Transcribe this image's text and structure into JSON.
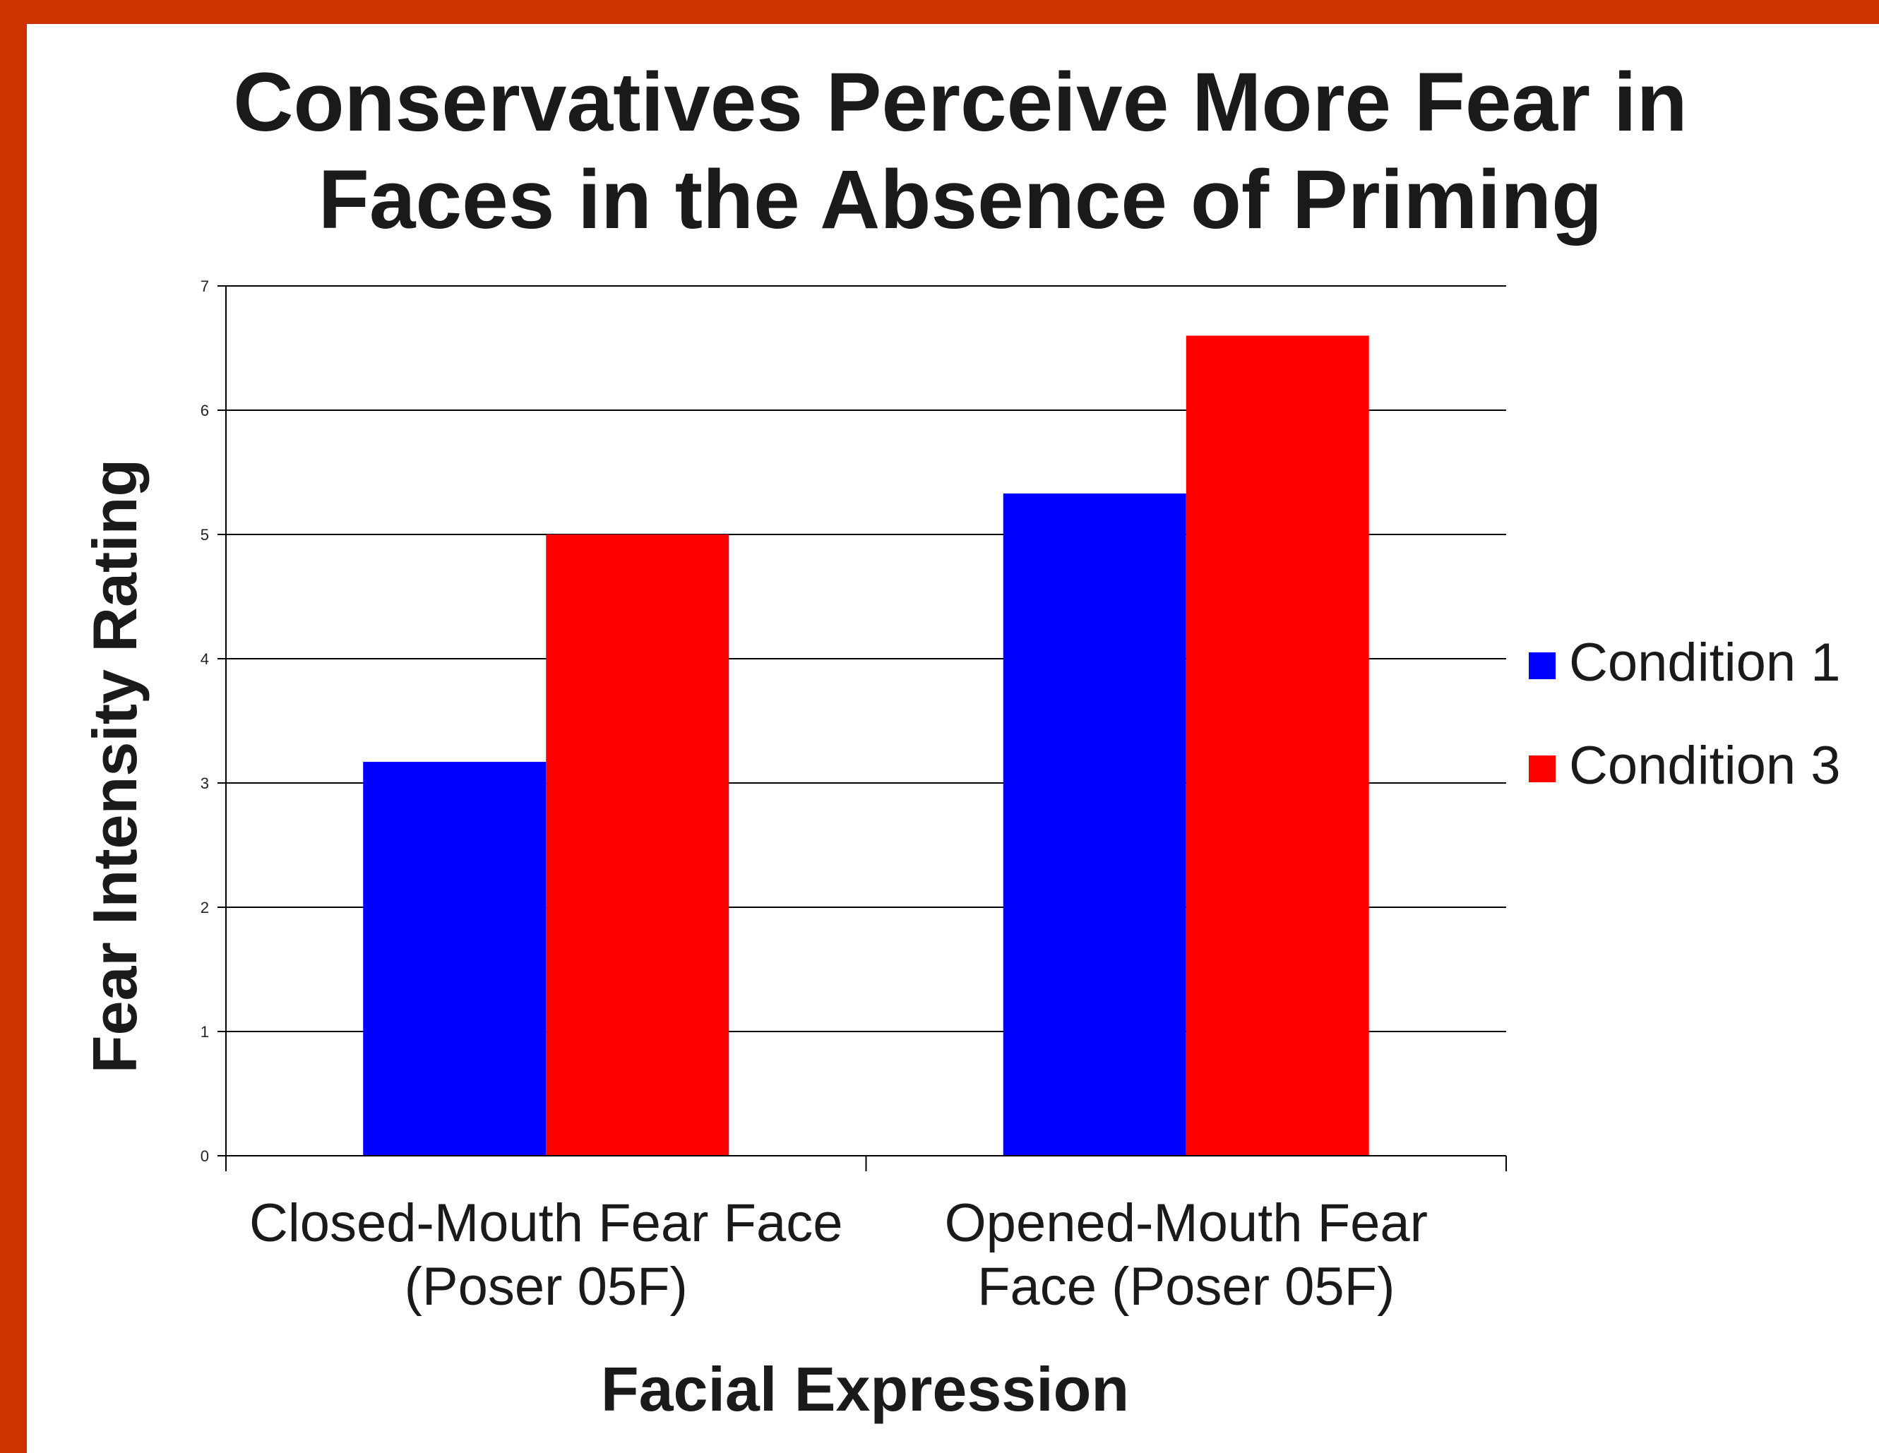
{
  "colors": {
    "frame": "#cc3300",
    "condition_1": "#0000ff",
    "condition_3": "#ff0000",
    "gridline": "#000000"
  },
  "chart_data": {
    "type": "bar",
    "title_lines": [
      "Conservatives Perceive More Fear in",
      "Faces in the Absence of Priming"
    ],
    "xlabel": "Facial Expression",
    "ylabel": "Fear Intensity Rating",
    "categories": [
      [
        "Closed-Mouth Fear Face",
        "(Poser 05F)"
      ],
      [
        "Opened-Mouth Fear",
        "Face (Poser 05F)"
      ]
    ],
    "series": [
      {
        "name": "Condition 1",
        "color": "#0000ff",
        "values": [
          3.17,
          5.33
        ]
      },
      {
        "name": "Condition 3",
        "color": "#ff0000",
        "values": [
          5.0,
          6.6
        ]
      }
    ],
    "ylim": [
      0,
      7
    ],
    "yticks": [
      "0",
      "1",
      "2",
      "3",
      "4",
      "5",
      "6",
      "7"
    ],
    "grid": true,
    "legend_position": "right"
  }
}
